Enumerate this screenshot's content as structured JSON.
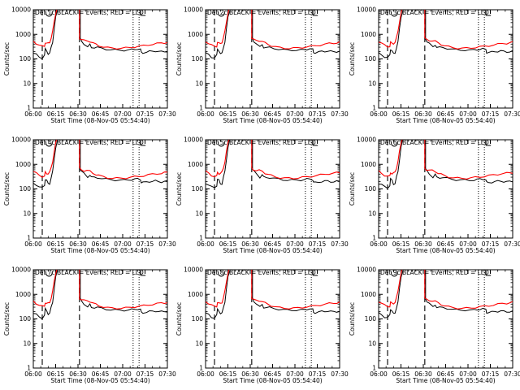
{
  "chart_data": [
    {
      "type": "line",
      "title": "Det 1c BLACK = Events, RED = LLD",
      "xlabel": "Start Time (08-Nov-05 05:54:40)",
      "ylabel": "Counts/sec",
      "yscale": "log",
      "ylim": [
        1,
        10000
      ],
      "xlim": [
        "06:00",
        "07:30"
      ],
      "x_tick_labels": [
        "06:00",
        "06:15",
        "06:30",
        "06:45",
        "07:00",
        "07:15",
        "07:30"
      ],
      "y_tick_labels": [
        "1",
        "10",
        "100",
        "1000",
        "10000"
      ],
      "series": [
        {
          "name": "BLACK = Events",
          "color": "#000000"
        },
        {
          "name": "RED = LLD",
          "color": "#ff0000"
        }
      ]
    },
    {
      "type": "line",
      "title": "Det 2c BLACK = Events, RED = LLD",
      "xlabel": "Start Time (08-Nov-05 05:54:40)",
      "ylabel": "Counts/sec",
      "yscale": "log",
      "ylim": [
        1,
        10000
      ],
      "xlim": [
        "06:00",
        "07:30"
      ],
      "x_tick_labels": [
        "06:00",
        "06:15",
        "06:30",
        "06:45",
        "07:00",
        "07:15",
        "07:30"
      ],
      "y_tick_labels": [
        "1",
        "10",
        "100",
        "1000",
        "10000"
      ],
      "series": [
        {
          "name": "BLACK = Events",
          "color": "#000000"
        },
        {
          "name": "RED = LLD",
          "color": "#ff0000"
        }
      ]
    },
    {
      "type": "line",
      "title": "Det 3c BLACK = Events, RED = LLD",
      "xlabel": "Start Time (08-Nov-05 05:54:40)",
      "ylabel": "Counts/sec",
      "yscale": "log",
      "ylim": [
        1,
        10000
      ],
      "xlim": [
        "06:00",
        "07:30"
      ],
      "x_tick_labels": [
        "06:00",
        "06:15",
        "06:30",
        "06:45",
        "07:00",
        "07:15",
        "07:30"
      ],
      "y_tick_labels": [
        "1",
        "10",
        "100",
        "1000",
        "10000"
      ],
      "series": [
        {
          "name": "BLACK = Events",
          "color": "#000000"
        },
        {
          "name": "RED = LLD",
          "color": "#ff0000"
        }
      ]
    },
    {
      "type": "line",
      "title": "Det 4c BLACK = Events, RED = LLD",
      "xlabel": "Start Time (08-Nov-05 05:54:40)",
      "ylabel": "Counts/sec",
      "yscale": "log",
      "ylim": [
        1,
        10000
      ],
      "xlim": [
        "06:00",
        "07:30"
      ],
      "x_tick_labels": [
        "06:00",
        "06:15",
        "06:30",
        "06:45",
        "07:00",
        "07:15",
        "07:30"
      ],
      "y_tick_labels": [
        "1",
        "10",
        "100",
        "1000",
        "10000"
      ],
      "series": [
        {
          "name": "BLACK = Events",
          "color": "#000000"
        },
        {
          "name": "RED = LLD",
          "color": "#ff0000"
        }
      ]
    },
    {
      "type": "line",
      "title": "Det 5c BLACK = Events, RED = LLD",
      "xlabel": "Start Time (08-Nov-05 05:54:40)",
      "ylabel": "Counts/sec",
      "yscale": "log",
      "ylim": [
        1,
        10000
      ],
      "xlim": [
        "06:00",
        "07:30"
      ],
      "x_tick_labels": [
        "06:00",
        "06:15",
        "06:30",
        "06:45",
        "07:00",
        "07:15",
        "07:30"
      ],
      "y_tick_labels": [
        "1",
        "10",
        "100",
        "1000",
        "10000"
      ],
      "series": [
        {
          "name": "BLACK = Events",
          "color": "#000000"
        },
        {
          "name": "RED = LLD",
          "color": "#ff0000"
        }
      ]
    },
    {
      "type": "line",
      "title": "Det 6c BLACK = Events, RED = LLD",
      "xlabel": "Start Time (08-Nov-05 05:54:40)",
      "ylabel": "Counts/sec",
      "yscale": "log",
      "ylim": [
        1,
        10000
      ],
      "xlim": [
        "06:00",
        "07:30"
      ],
      "x_tick_labels": [
        "06:00",
        "06:15",
        "06:30",
        "06:45",
        "07:00",
        "07:15",
        "07:30"
      ],
      "y_tick_labels": [
        "1",
        "10",
        "100",
        "1000",
        "10000"
      ],
      "series": [
        {
          "name": "BLACK = Events",
          "color": "#000000"
        },
        {
          "name": "RED = LLD",
          "color": "#ff0000"
        }
      ]
    },
    {
      "type": "line",
      "title": "Det 7c BLACK = Events, RED = LLD",
      "xlabel": "Start Time (08-Nov-05 05:54:40)",
      "ylabel": "Counts/sec",
      "yscale": "log",
      "ylim": [
        1,
        10000
      ],
      "xlim": [
        "06:00",
        "07:30"
      ],
      "x_tick_labels": [
        "06:00",
        "06:15",
        "06:30",
        "06:45",
        "07:00",
        "07:15",
        "07:30"
      ],
      "y_tick_labels": [
        "1",
        "10",
        "100",
        "1000",
        "10000"
      ],
      "series": [
        {
          "name": "BLACK = Events",
          "color": "#000000"
        },
        {
          "name": "RED = LLD",
          "color": "#ff0000"
        }
      ]
    },
    {
      "type": "line",
      "title": "Det 8c BLACK = Events, RED = LLD",
      "xlabel": "Start Time (08-Nov-05 05:54:40)",
      "ylabel": "Counts/sec",
      "yscale": "log",
      "ylim": [
        1,
        10000
      ],
      "xlim": [
        "06:00",
        "07:30"
      ],
      "x_tick_labels": [
        "06:00",
        "06:15",
        "06:30",
        "06:45",
        "07:00",
        "07:15",
        "07:30"
      ],
      "y_tick_labels": [
        "1",
        "10",
        "100",
        "1000",
        "10000"
      ],
      "series": [
        {
          "name": "BLACK = Events",
          "color": "#000000"
        },
        {
          "name": "RED = LLD",
          "color": "#ff0000"
        }
      ]
    },
    {
      "type": "line",
      "title": "Det 9c BLACK = Events, RED = LLD",
      "xlabel": "Start Time (08-Nov-05 05:54:40)",
      "ylabel": "Counts/sec",
      "yscale": "log",
      "ylim": [
        1,
        10000
      ],
      "xlim": [
        "06:00",
        "07:30"
      ],
      "x_tick_labels": [
        "06:00",
        "06:15",
        "06:30",
        "06:45",
        "07:00",
        "07:15",
        "07:30"
      ],
      "y_tick_labels": [
        "1",
        "10",
        "100",
        "1000",
        "10000"
      ],
      "series": [
        {
          "name": "BLACK = Events",
          "color": "#000000"
        },
        {
          "name": "RED = LLD",
          "color": "#ff0000"
        }
      ]
    }
  ]
}
